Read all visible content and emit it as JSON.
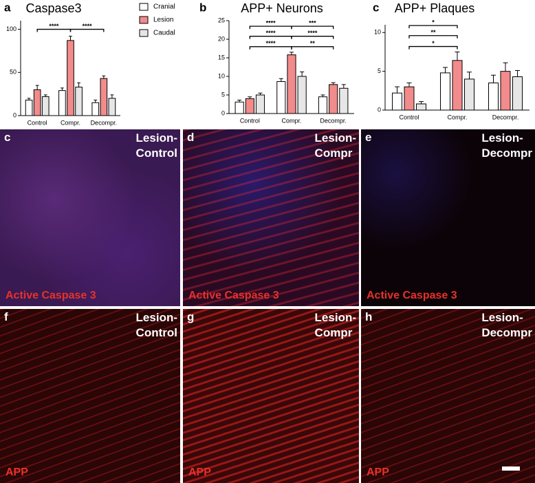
{
  "chart_data": [
    {
      "type": "bar",
      "panel_label": "a",
      "title": "Caspase3",
      "categories": [
        "Control",
        "Compr.",
        "Decompr."
      ],
      "series": [
        {
          "name": "Cranial",
          "color": "#ffffff",
          "values": [
            18,
            29,
            15
          ],
          "errors": [
            2,
            3,
            3
          ]
        },
        {
          "name": "Lesion",
          "color": "#f28b8b",
          "values": [
            30,
            87,
            43
          ],
          "errors": [
            5,
            5,
            3
          ]
        },
        {
          "name": "Caudal",
          "color": "#e6e6e6",
          "values": [
            22,
            33,
            20
          ],
          "errors": [
            2,
            5,
            4
          ]
        }
      ],
      "ylim": [
        0,
        110
      ],
      "yticks": [
        0,
        50,
        100
      ],
      "legend": "right",
      "annotations": [
        {
          "text": "****",
          "from": "Control",
          "to": "Compr.",
          "y": 100
        },
        {
          "text": "****",
          "from": "Compr.",
          "to": "Decompr.",
          "y": 100
        }
      ]
    },
    {
      "type": "bar",
      "panel_label": "b",
      "title": "APP+ Neurons",
      "categories": [
        "Control",
        "Compr.",
        "Decompr."
      ],
      "series": [
        {
          "color": "#ffffff",
          "values": [
            3.1,
            8.6,
            4.5
          ],
          "errors": [
            0.5,
            0.8,
            0.5
          ]
        },
        {
          "color": "#f28b8b",
          "values": [
            4,
            15.8,
            7.8
          ],
          "errors": [
            0.5,
            0.7,
            0.5
          ]
        },
        {
          "color": "#e6e6e6",
          "values": [
            5,
            10,
            6.8
          ],
          "errors": [
            0.5,
            1.2,
            1
          ]
        }
      ],
      "ylim": [
        0,
        25
      ],
      "yticks": [
        0,
        5,
        10,
        15,
        20,
        25
      ],
      "annotations": [
        {
          "text": "****",
          "from": "Control",
          "to": "Compr.",
          "y": 23.5
        },
        {
          "text": "***",
          "from": "Compr.",
          "to": "Decompr.",
          "y": 23.5
        },
        {
          "text": "****",
          "from": "Control",
          "to": "Compr.",
          "y": 20.8
        },
        {
          "text": "****",
          "from": "Compr.",
          "to": "Decompr.",
          "y": 20.8
        },
        {
          "text": "****",
          "from": "Control",
          "to": "Compr.",
          "y": 18
        },
        {
          "text": "**",
          "from": "Compr.",
          "to": "Decompr.",
          "y": 18
        }
      ]
    },
    {
      "type": "bar",
      "panel_label": "c",
      "title": "APP+ Plaques",
      "categories": [
        "Control",
        "Compr.",
        "Decompr."
      ],
      "series": [
        {
          "color": "#ffffff",
          "values": [
            2.2,
            4.8,
            3.5
          ],
          "errors": [
            0.8,
            0.7,
            1
          ]
        },
        {
          "color": "#f28b8b",
          "values": [
            3,
            6.4,
            5
          ],
          "errors": [
            0.5,
            1.1,
            1.1
          ]
        },
        {
          "color": "#e6e6e6",
          "values": [
            0.8,
            4,
            4.3
          ],
          "errors": [
            0.3,
            0.9,
            0.8
          ]
        }
      ],
      "ylim": [
        0,
        11
      ],
      "yticks": [
        0,
        5,
        10
      ],
      "annotations": [
        {
          "text": "*",
          "from": "Control",
          "to": "Compr.",
          "y": 10.9
        },
        {
          "text": "**",
          "from": "Control",
          "to": "Compr.",
          "y": 9.6
        },
        {
          "text": "*",
          "from": "Control",
          "to": "Compr.",
          "y": 8.2
        }
      ]
    }
  ],
  "image_panels": [
    {
      "letter": "c",
      "title": [
        "Lesion-",
        "Control"
      ],
      "stain": "Active Caspase 3"
    },
    {
      "letter": "d",
      "title": [
        "Lesion-",
        "Compr"
      ],
      "stain": "Active Caspase 3"
    },
    {
      "letter": "e",
      "title": [
        "Lesion-",
        "Decompr"
      ],
      "stain": "Active Caspase 3"
    },
    {
      "letter": "f",
      "title": [
        "Lesion-",
        "Control"
      ],
      "stain": "APP"
    },
    {
      "letter": "g",
      "title": [
        "Lesion-",
        "Compr"
      ],
      "stain": "APP"
    },
    {
      "letter": "h",
      "title": [
        "Lesion-",
        "Decompr"
      ],
      "stain": "APP"
    }
  ]
}
